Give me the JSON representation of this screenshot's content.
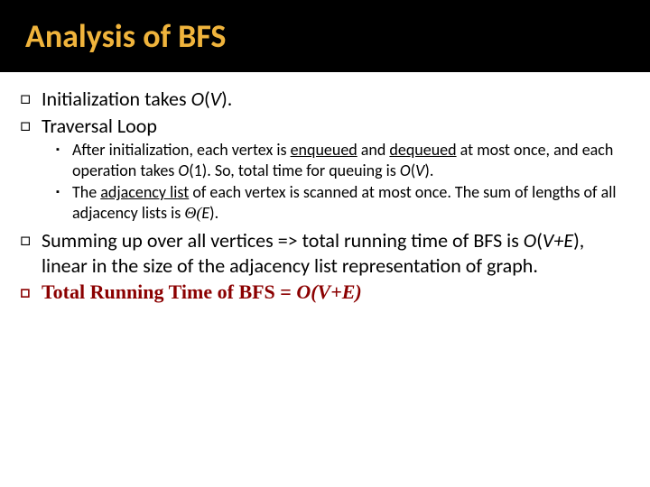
{
  "title": {
    "text": "Analysis of BFS",
    "color": "#f0b43c",
    "background": "#000000"
  },
  "bullets": {
    "init_prefix": "Initialization takes ",
    "init_bigO": "O",
    "init_paren_open": "(",
    "init_V": "V",
    "init_paren_close": ").",
    "traversal": "Traversal Loop",
    "sub1_a": "After initialization, each vertex is ",
    "sub1_enq": "enqueued",
    "sub1_b": " and ",
    "sub1_deq": "dequeued",
    "sub1_c": " at most once, and each operation takes ",
    "sub1_O": "O",
    "sub1_one": "(1)",
    "sub1_d": ".  So, total time for queuing is ",
    "sub1_O2": "O",
    "sub1_paren_open": "(",
    "sub1_V": "V",
    "sub1_paren_close": ").",
    "sub2_a": "The ",
    "sub2_adj": "adjacency list",
    "sub2_b": " of each vertex is scanned at most once.  The sum of lengths of all adjacency lists is ",
    "sub2_theta": "Θ(",
    "sub2_E": "E",
    "sub2_close": ").",
    "sum_a": "Summing up over all vertices => total running time of BFS is ",
    "sum_O": "O",
    "sum_paren_open": "(",
    "sum_VE": "V+E",
    "sum_paren_close": ")",
    "sum_b": ", linear in the size of the adjacency list representation of graph.",
    "total_a": "Total Running Time of BFS = ",
    "total_O": "O(V+E)"
  },
  "colors": {
    "maroon": "#8b0000",
    "text": "#000000"
  }
}
